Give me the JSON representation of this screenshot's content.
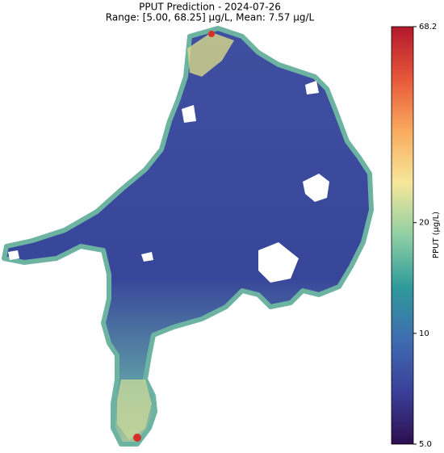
{
  "map": {
    "title": "PPUT Prediction - 2024-07-26",
    "subtitle": "Range: [5.00, 68.25] µg/L, Mean: 7.57 µg/L",
    "colorbar": {
      "label": "PPUT (µg/L)",
      "lim": [
        5,
        68.2
      ],
      "scale": "log",
      "ticks": [
        {
          "value": 5,
          "label": "5.0"
        },
        10,
        20,
        68.2
      ],
      "colors": [
        "#2d0f4e",
        "#3a3f99",
        "#3f6cb0",
        "#2e9a9a",
        "#8fcfa4",
        "#f6e79a",
        "#f9ab5e",
        "#e7573a",
        "#b2182b"
      ]
    }
  }
}
